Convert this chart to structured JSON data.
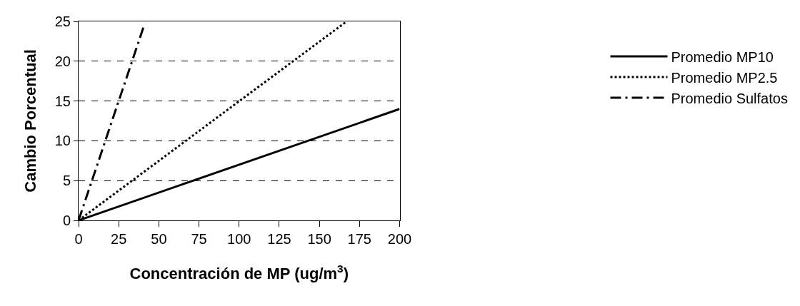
{
  "chart_data": {
    "type": "line",
    "xlabel": "Concentración de MP (ug/m$^{3}$)",
    "ylabel": "Cambio Porcentual",
    "xlim": [
      0,
      200
    ],
    "xticks": [
      0,
      25,
      50,
      75,
      100,
      125,
      150,
      175,
      200
    ],
    "ylim": [
      0,
      25
    ],
    "yticks": [
      0,
      5,
      10,
      15,
      20,
      25
    ],
    "grid": "y",
    "legend": "right",
    "marker": "none",
    "series": [
      {
        "name": "Promedio MP10",
        "color": "#000000",
        "line_style": "solid",
        "x": [
          0,
          200
        ],
        "values": [
          0,
          14
        ]
      },
      {
        "name": "Promedio MP2.5",
        "color": "#000000",
        "line_style": "dotted",
        "x": [
          0,
          167
        ],
        "values": [
          0,
          25
        ]
      },
      {
        "name": "Promedio Sulfatos",
        "color": "#000000",
        "line_style": "dashdot",
        "x": [
          0,
          40.5
        ],
        "values": [
          0,
          24.3
        ]
      }
    ]
  }
}
